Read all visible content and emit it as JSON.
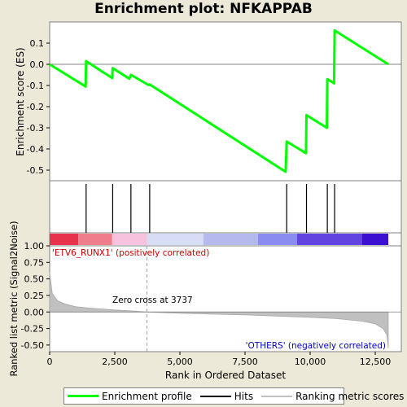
{
  "chart_data": {
    "type": "line",
    "title": "Enrichment plot: NFKAPPAB",
    "top_panel": {
      "ylabel": "Enrichment score (ES)",
      "ylim": [
        -0.55,
        0.2
      ],
      "yticks": [
        "0.1",
        "0.0",
        "-0.1",
        "-0.2",
        "-0.3",
        "-0.4",
        "-0.5"
      ],
      "ytick_values": [
        0.1,
        0.0,
        -0.1,
        -0.2,
        -0.3,
        -0.4,
        -0.5
      ],
      "series": [
        {
          "name": "Enrichment profile",
          "color": "#00ff00",
          "x": [
            0,
            1380,
            1400,
            2400,
            2420,
            3060,
            3120,
            3800,
            3840,
            9060,
            9100,
            9840,
            9860,
            10640,
            10660,
            10920,
            10940,
            13000
          ],
          "y": [
            0.0,
            -0.105,
            0.015,
            -0.065,
            -0.018,
            -0.068,
            -0.05,
            -0.098,
            -0.095,
            -0.508,
            -0.365,
            -0.42,
            -0.24,
            -0.3,
            -0.07,
            -0.09,
            0.16,
            0.0
          ]
        }
      ]
    },
    "hits": [
      1400,
      2420,
      3120,
      3840,
      9100,
      9860,
      10660,
      10940
    ],
    "bottom_panel": {
      "ylabel": "Ranked list metric (Signal2Noise)",
      "xlabel": "Rank in Ordered Dataset",
      "ylim": [
        -0.6,
        1.0
      ],
      "yticks": [
        "1.00",
        "0.75",
        "0.50",
        "0.25",
        "0.00",
        "-0.25",
        "-0.50"
      ],
      "ytick_values": [
        1.0,
        0.75,
        0.5,
        0.25,
        0.0,
        -0.25,
        -0.5
      ],
      "xlim": [
        0,
        13500
      ],
      "xticks": [
        "0",
        "2,500",
        "5,000",
        "7,500",
        "10,000",
        "12,500"
      ],
      "xtick_values": [
        0,
        2500,
        5000,
        7500,
        10000,
        12500
      ],
      "metric_curve": {
        "x": [
          0,
          100,
          300,
          600,
          1000,
          1500,
          2000,
          2500,
          3000,
          3737,
          5000,
          7500,
          10000,
          11000,
          12000,
          12500,
          12800,
          12950,
          13000
        ],
        "y": [
          0.6,
          0.28,
          0.17,
          0.12,
          0.08,
          0.06,
          0.045,
          0.03,
          0.02,
          0.0,
          -0.02,
          -0.045,
          -0.08,
          -0.1,
          -0.14,
          -0.18,
          -0.25,
          -0.35,
          -0.55
        ]
      },
      "zero_cross": 3737,
      "zero_cross_label": "Zero cross at 3737",
      "pos_label": "'ETV6_RUNX1' (positively correlated)",
      "neg_label": "'OTHERS' (negatively correlated)",
      "pos_label_color": "#cc0000",
      "neg_label_color": "#0000cc"
    },
    "colorbar": [
      {
        "from": 0,
        "to": 1100,
        "color": "#e8334d"
      },
      {
        "from": 1100,
        "to": 2400,
        "color": "#f07d8c"
      },
      {
        "from": 2400,
        "to": 3737,
        "color": "#f7c3dc"
      },
      {
        "from": 3737,
        "to": 5900,
        "color": "#d8dcf4"
      },
      {
        "from": 5900,
        "to": 8000,
        "color": "#b5b9ee"
      },
      {
        "from": 8000,
        "to": 9500,
        "color": "#8a8cf0"
      },
      {
        "from": 9500,
        "to": 12000,
        "color": "#6244e0"
      },
      {
        "from": 12000,
        "to": 13000,
        "color": "#3b10d0"
      }
    ],
    "legend": [
      {
        "label": "Enrichment profile",
        "color": "#00ff00"
      },
      {
        "label": "Hits",
        "color": "#000000"
      },
      {
        "label": "Ranking metric scores",
        "color": "#c0c0c0"
      }
    ]
  }
}
